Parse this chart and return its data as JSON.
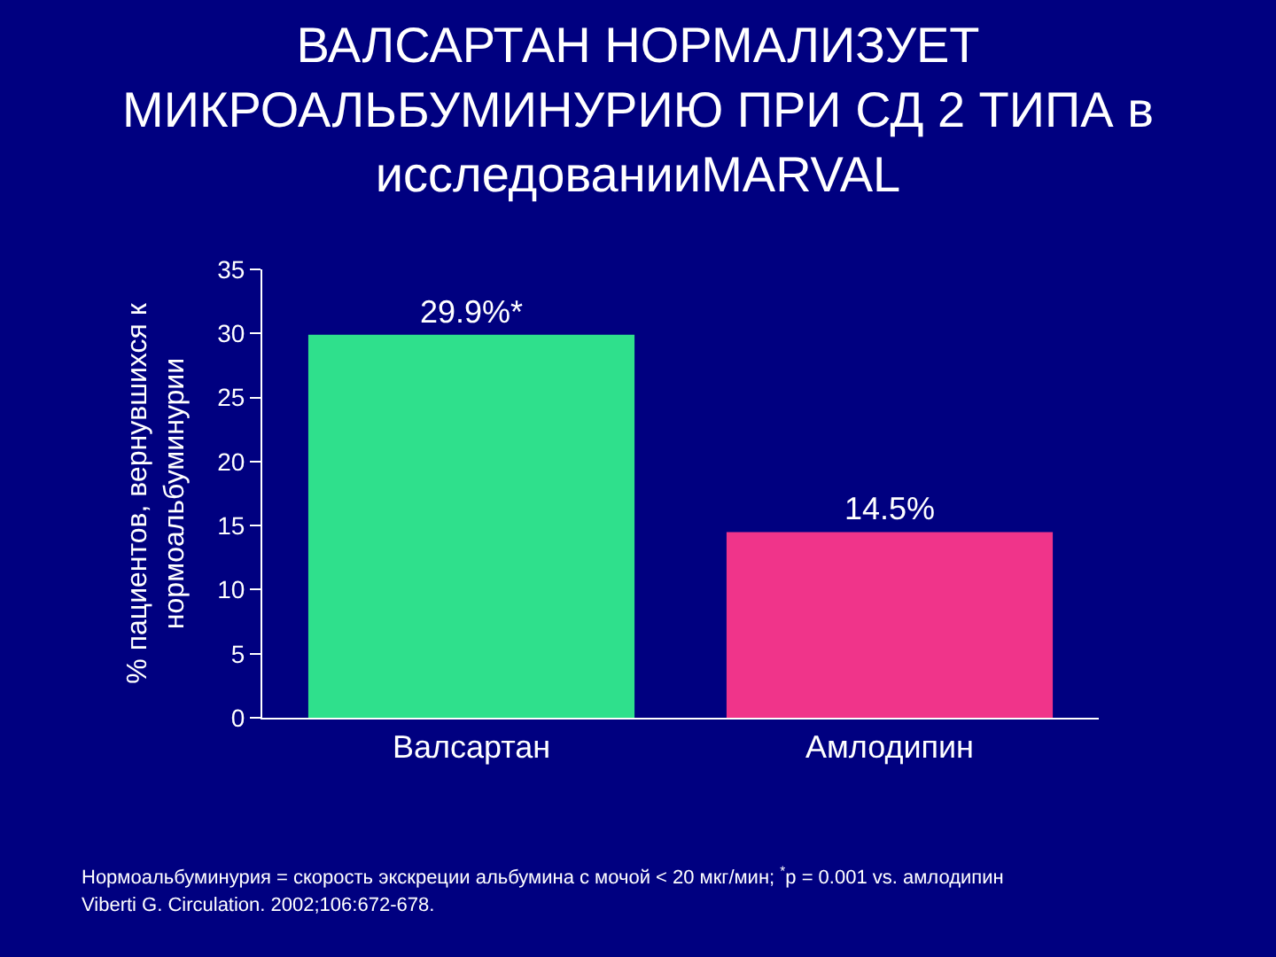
{
  "chart_data": {
    "type": "bar",
    "title": "ВАЛСАРТАН НОРМАЛИЗУЕТ\nМИКРОАЛЬБУМИНУРИЮ ПРИ СД 2 ТИПА в\nисследованииMARVAL",
    "ylabel": "% пациентов, вернувшихся к\nнормоальбуминурии",
    "categories": [
      "Валсартан",
      "Амлодипин"
    ],
    "values": [
      29.9,
      14.5
    ],
    "value_labels": [
      "29.9%*",
      "14.5%"
    ],
    "colors": [
      "#2fe08c",
      "#f0348a"
    ],
    "ylim": [
      0,
      35
    ],
    "yticks": [
      0,
      5,
      10,
      15,
      20,
      25,
      30,
      35
    ],
    "grid": false,
    "annotations": [
      "Нормоальбуминурия = скорость экскреции альбумина с мочой < 20 мкг/мин; $^{*}$p = 0.001 vs. амлодипин",
      "Viberti G. Circulation. 2002;106:672-678."
    ]
  }
}
